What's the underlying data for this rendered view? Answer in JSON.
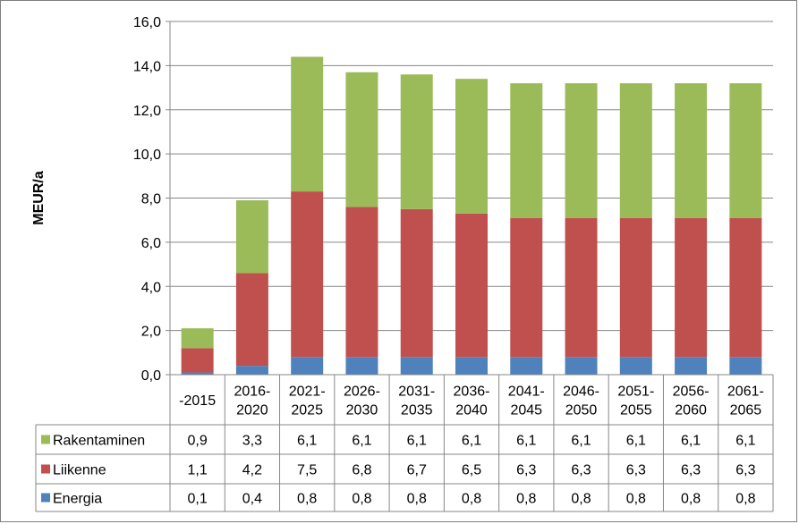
{
  "chart_data": {
    "type": "bar",
    "stacked": true,
    "ylabel": "MEUR/a",
    "ylim": [
      0,
      16
    ],
    "yticks": [
      "0,0",
      "2,0",
      "4,0",
      "6,0",
      "8,0",
      "10,0",
      "12,0",
      "14,0",
      "16,0"
    ],
    "ytick_values": [
      0,
      2,
      4,
      6,
      8,
      10,
      12,
      14,
      16
    ],
    "grid": true,
    "legend_placement": "data-table-left",
    "categories": [
      [
        "-2015"
      ],
      [
        "2016-",
        "2020"
      ],
      [
        "2021-",
        "2025"
      ],
      [
        "2026-",
        "2030"
      ],
      [
        "2031-",
        "2035"
      ],
      [
        "2036-",
        "2040"
      ],
      [
        "2041-",
        "2045"
      ],
      [
        "2046-",
        "2050"
      ],
      [
        "2051-",
        "2055"
      ],
      [
        "2056-",
        "2060"
      ],
      [
        "2061-",
        "2065"
      ]
    ],
    "series": [
      {
        "name": "Energia",
        "color": "#4f81bd",
        "values": [
          0.1,
          0.4,
          0.8,
          0.8,
          0.8,
          0.8,
          0.8,
          0.8,
          0.8,
          0.8,
          0.8
        ],
        "labels": [
          "0,1",
          "0,4",
          "0,8",
          "0,8",
          "0,8",
          "0,8",
          "0,8",
          "0,8",
          "0,8",
          "0,8",
          "0,8"
        ]
      },
      {
        "name": "Liikenne",
        "color": "#c0504d",
        "values": [
          1.1,
          4.2,
          7.5,
          6.8,
          6.7,
          6.5,
          6.3,
          6.3,
          6.3,
          6.3,
          6.3
        ],
        "labels": [
          "1,1",
          "4,2",
          "7,5",
          "6,8",
          "6,7",
          "6,5",
          "6,3",
          "6,3",
          "6,3",
          "6,3",
          "6,3"
        ]
      },
      {
        "name": "Rakentaminen",
        "color": "#9bbb59",
        "values": [
          0.9,
          3.3,
          6.1,
          6.1,
          6.1,
          6.1,
          6.1,
          6.1,
          6.1,
          6.1,
          6.1
        ],
        "labels": [
          "0,9",
          "3,3",
          "6,1",
          "6,1",
          "6,1",
          "6,1",
          "6,1",
          "6,1",
          "6,1",
          "6,1",
          "6,1"
        ]
      }
    ],
    "table_row_order": [
      "Rakentaminen",
      "Liikenne",
      "Energia"
    ]
  }
}
